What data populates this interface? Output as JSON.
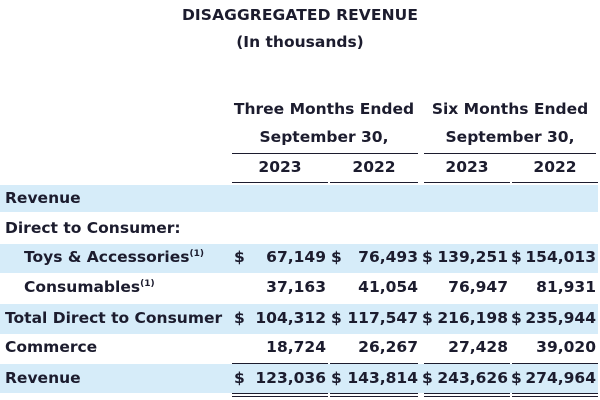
{
  "title": "DISAGGREGATED REVENUE",
  "subtitle": "(In thousands)",
  "column_groups": [
    {
      "line1": "Three Months Ended",
      "line2": "September 30,"
    },
    {
      "line1": "Six Months Ended",
      "line2": "September 30,"
    }
  ],
  "years": [
    "2023",
    "2022",
    "2023",
    "2022"
  ],
  "currency_symbol": "$",
  "footnote_marker": "(1)",
  "rows": [
    {
      "label": "Revenue",
      "values": [
        "",
        "",
        "",
        ""
      ]
    },
    {
      "label": "Direct to Consumer:",
      "values": [
        "",
        "",
        "",
        ""
      ]
    },
    {
      "label": "Toys & Accessories",
      "values": [
        "67,149",
        "76,493",
        "139,251",
        "154,013"
      ]
    },
    {
      "label": "Consumables",
      "values": [
        "37,163",
        "41,054",
        "76,947",
        "81,931"
      ]
    },
    {
      "label": "Total Direct to Consumer",
      "values": [
        "104,312",
        "117,547",
        "216,198",
        "235,944"
      ]
    },
    {
      "label": "Commerce",
      "values": [
        "18,724",
        "26,267",
        "27,428",
        "39,020"
      ]
    },
    {
      "label": "Revenue",
      "values": [
        "123,036",
        "143,814",
        "243,626",
        "274,964"
      ]
    }
  ],
  "colors": {
    "band": "#d6ecf9",
    "text": "#1c1c2e"
  }
}
